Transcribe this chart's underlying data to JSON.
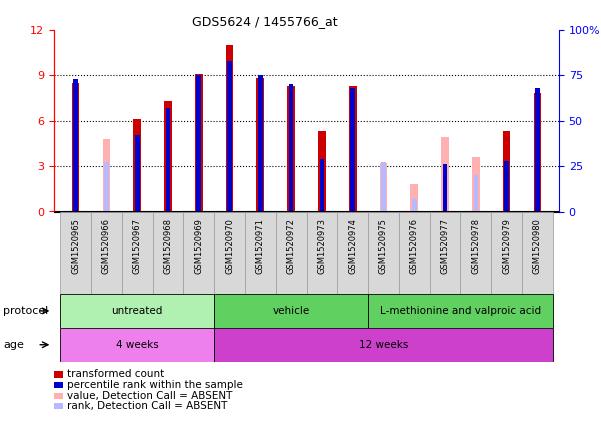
{
  "title": "GDS5624 / 1455766_at",
  "samples": [
    "GSM1520965",
    "GSM1520966",
    "GSM1520967",
    "GSM1520968",
    "GSM1520969",
    "GSM1520970",
    "GSM1520971",
    "GSM1520972",
    "GSM1520973",
    "GSM1520974",
    "GSM1520975",
    "GSM1520976",
    "GSM1520977",
    "GSM1520978",
    "GSM1520979",
    "GSM1520980"
  ],
  "red_values": [
    8.5,
    4.8,
    6.1,
    7.3,
    9.1,
    11.0,
    8.8,
    8.3,
    5.3,
    8.3,
    3.2,
    1.8,
    4.9,
    3.6,
    5.3,
    7.8
  ],
  "blue_values_pct": [
    73,
    27,
    42,
    57,
    75,
    83,
    75,
    70,
    29,
    68,
    27,
    7,
    26,
    20,
    28,
    68
  ],
  "absent_red": [
    false,
    true,
    false,
    false,
    false,
    false,
    false,
    false,
    false,
    false,
    true,
    true,
    true,
    true,
    false,
    false
  ],
  "absent_blue": [
    false,
    true,
    false,
    false,
    false,
    false,
    false,
    false,
    false,
    false,
    true,
    true,
    false,
    true,
    false,
    false
  ],
  "ylim_left": [
    0,
    12
  ],
  "ylim_right": [
    0,
    100
  ],
  "yticks_left": [
    0,
    3,
    6,
    9,
    12
  ],
  "ytick_labels_right": [
    "0",
    "25",
    "50",
    "75",
    "100%"
  ],
  "red_color": "#cc0000",
  "blue_color": "#0000cc",
  "absent_red_color": "#ffb0b0",
  "absent_blue_color": "#b8b8ff",
  "prot_groups": [
    {
      "label": "untreated",
      "start": 0,
      "end": 5,
      "color": "#b0f0b0"
    },
    {
      "label": "vehicle",
      "start": 5,
      "end": 10,
      "color": "#60d060"
    },
    {
      "label": "L-methionine and valproic acid",
      "start": 10,
      "end": 16,
      "color": "#60d060"
    }
  ],
  "age_groups": [
    {
      "label": "4 weeks",
      "start": 0,
      "end": 5,
      "color": "#ee80ee"
    },
    {
      "label": "12 weeks",
      "start": 5,
      "end": 16,
      "color": "#cc40cc"
    }
  ],
  "legend_items": [
    {
      "color": "#cc0000",
      "label": "transformed count"
    },
    {
      "color": "#0000cc",
      "label": "percentile rank within the sample"
    },
    {
      "color": "#ffb0b0",
      "label": "value, Detection Call = ABSENT"
    },
    {
      "color": "#b8b8ff",
      "label": "rank, Detection Call = ABSENT"
    }
  ]
}
